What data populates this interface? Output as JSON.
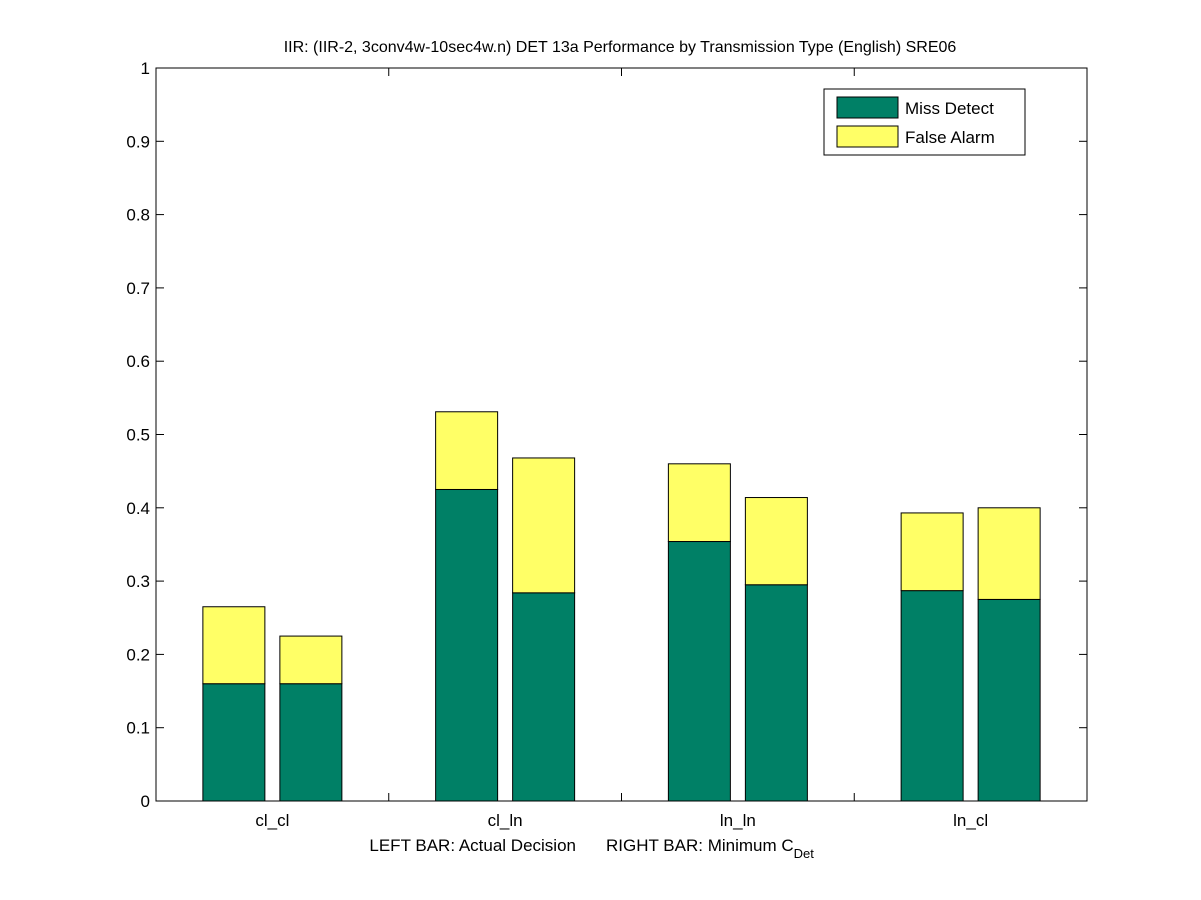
{
  "chart_data": {
    "type": "bar",
    "stacked": true,
    "title": "IIR: (IIR-2, 3conv4w-10sec4w.n) DET 13a Performance by Transmission Type (English) SRE06",
    "xlabel_left": "LEFT BAR: Actual Decision",
    "xlabel_right_prefix": "RIGHT BAR: Minimum C",
    "xlabel_right_subscript": "Det",
    "ylabel": "",
    "ylim": [
      0,
      1
    ],
    "yticks": [
      "0",
      "0.1",
      "0.2",
      "0.3",
      "0.4",
      "0.5",
      "0.6",
      "0.7",
      "0.8",
      "0.9",
      "1"
    ],
    "categories": [
      "cl_cl",
      "cl_ln",
      "ln_ln",
      "ln_cl"
    ],
    "bars_per_category": [
      "Actual Decision",
      "Minimum C_Det"
    ],
    "series": [
      {
        "name": "Miss Detect",
        "color": "#008066",
        "values": [
          [
            0.16,
            0.16
          ],
          [
            0.425,
            0.284
          ],
          [
            0.354,
            0.295
          ],
          [
            0.287,
            0.275
          ]
        ]
      },
      {
        "name": "False Alarm",
        "color": "#ffff66",
        "values": [
          [
            0.105,
            0.065
          ],
          [
            0.106,
            0.184
          ],
          [
            0.106,
            0.119
          ],
          [
            0.106,
            0.125
          ]
        ]
      }
    ],
    "legend": {
      "position": "top-right"
    },
    "grid": false
  }
}
